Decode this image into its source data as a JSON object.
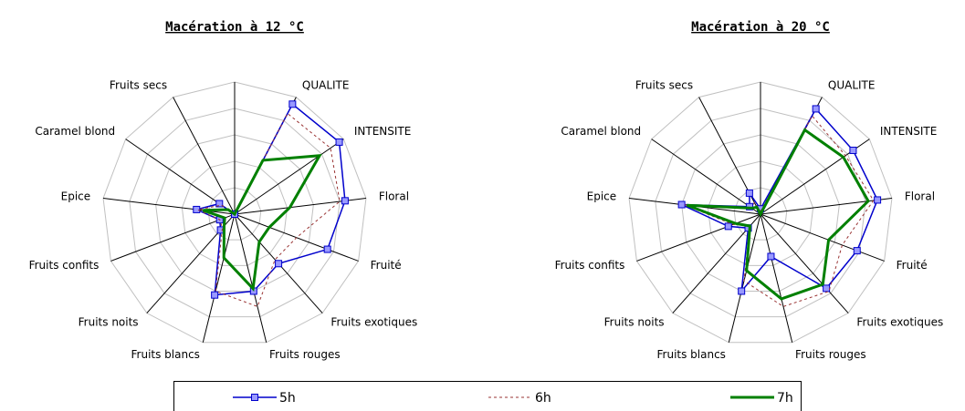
{
  "chart_data": [
    {
      "type": "radar",
      "title": "Macération à 12 °C",
      "categories": [
        null,
        "QUALITE",
        "INTENSITE",
        "Floral",
        "Fruité",
        "Fruits exotiques",
        "Fruits rouges",
        "Fruits blancs",
        "Fruits noits",
        "Fruits confits",
        "Epice",
        "Caramel blond",
        "Fruits secs"
      ],
      "rlim": [
        0,
        5
      ],
      "rticks": [
        1,
        2,
        3,
        4,
        5
      ],
      "grid": true,
      "series": [
        {
          "name": "5h",
          "color": "#0000cc",
          "values": [
            0,
            4.7,
            4.8,
            4.2,
            3.75,
            2.5,
            3.0,
            3.15,
            0.8,
            0.6,
            1.45,
            0.7,
            0
          ]
        },
        {
          "name": "6h",
          "color": "#993333",
          "values": [
            0,
            4.3,
            4.4,
            4.0,
            2.5,
            2.3,
            3.6,
            3.0,
            0.7,
            0.6,
            1.4,
            0.6,
            0
          ]
        },
        {
          "name": "7h",
          "color": "#008000",
          "values": [
            0,
            2.3,
            3.9,
            2.1,
            1.4,
            1.4,
            2.9,
            1.7,
            0.6,
            0.4,
            1.2,
            0.3,
            0
          ]
        }
      ]
    },
    {
      "type": "radar",
      "title": "Macération à 20 °C",
      "categories": [
        null,
        "QUALITE",
        "INTENSITE",
        "Floral",
        "Fruité",
        "Fruits exotiques",
        "Fruits rouges",
        "Fruits blancs",
        "Fruits noits",
        "Fruits confits",
        "Epice",
        "Caramel blond",
        "Fruits secs"
      ],
      "rlim": [
        0,
        5
      ],
      "rticks": [
        1,
        2,
        3,
        4,
        5
      ],
      "grid": true,
      "series": [
        {
          "name": "5h",
          "color": "#0000cc",
          "values": [
            0.2,
            4.5,
            4.25,
            4.45,
            3.9,
            3.75,
            1.65,
            3.0,
            0.7,
            1.3,
            3.0,
            0.5,
            0.9
          ]
        },
        {
          "name": "6h",
          "color": "#993333",
          "values": [
            0.1,
            4.2,
            3.9,
            4.3,
            3.3,
            3.9,
            3.6,
            2.6,
            0.6,
            1.1,
            2.9,
            0.4,
            0.5
          ]
        },
        {
          "name": "7h",
          "color": "#008000",
          "values": [
            0,
            3.6,
            3.8,
            4.1,
            2.75,
            3.55,
            3.3,
            2.2,
            0.6,
            1.0,
            2.8,
            0.4,
            0.3
          ]
        }
      ]
    }
  ]
}
